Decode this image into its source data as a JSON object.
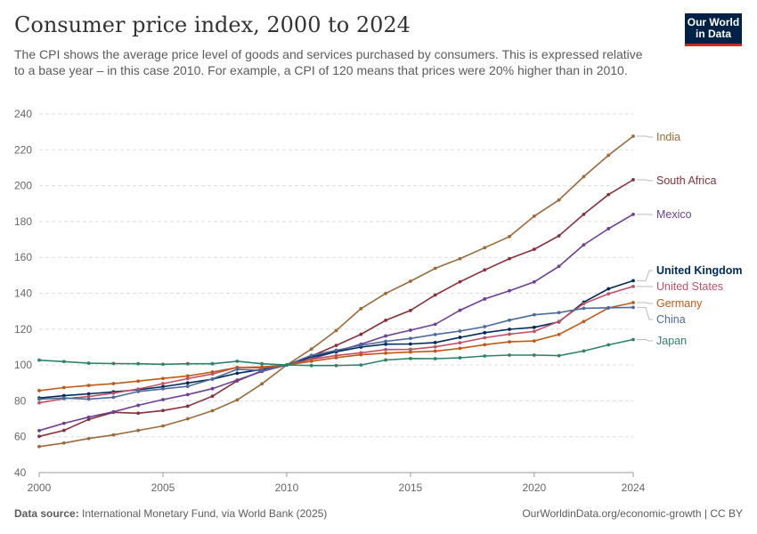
{
  "header": {
    "title": "Consumer price index, 2000 to 2024",
    "subtitle": "The CPI shows the average price level of goods and services purchased by consumers. This is expressed relative to a base year – in this case 2010. For example, a CPI of 120 means that prices were 20% higher than in 2010.",
    "logo_line1": "Our World",
    "logo_line2": "in Data"
  },
  "footer": {
    "source_label": "Data source:",
    "source_text": "International Monetary Fund, via World Bank (2025)",
    "right_text": "OurWorldinData.org/economic-growth | CC BY"
  },
  "chart_data": {
    "type": "line",
    "title": "Consumer price index, 2000 to 2024",
    "xlabel": "",
    "ylabel": "",
    "xlim": [
      2000,
      2024
    ],
    "ylim": [
      40,
      240
    ],
    "xticks": [
      "2000",
      "2005",
      "2010",
      "2015",
      "2020",
      "2024"
    ],
    "yticks": [
      "40",
      "60",
      "80",
      "100",
      "120",
      "140",
      "160",
      "180",
      "200",
      "220",
      "240"
    ],
    "grid": "horizontal dashed",
    "legend": "right, inline labels at line ends",
    "x": [
      2000,
      2001,
      2002,
      2003,
      2004,
      2005,
      2006,
      2007,
      2008,
      2009,
      2010,
      2011,
      2012,
      2013,
      2014,
      2015,
      2016,
      2017,
      2018,
      2019,
      2020,
      2021,
      2022,
      2023,
      2024
    ],
    "series": [
      {
        "name": "India",
        "color": "#9a6a3a",
        "values": [
          54.5,
          56.5,
          59,
          61,
          63.5,
          66,
          70,
          74.5,
          80.5,
          89.5,
          100,
          108.9,
          119.2,
          131.4,
          139.9,
          146.7,
          153.9,
          159.3,
          165.4,
          171.6,
          183,
          192,
          205,
          216.9,
          227.6
        ]
      },
      {
        "name": "South Africa",
        "color": "#883039",
        "values": [
          60.2,
          63.5,
          69.7,
          73.6,
          73.1,
          74.6,
          77.0,
          82.6,
          91.1,
          96.7,
          100,
          105.0,
          110.9,
          117.1,
          124.9,
          130.4,
          139.0,
          146.4,
          153.0,
          159.3,
          164.5,
          172.0,
          184.0,
          195.0,
          203.3
        ]
      },
      {
        "name": "Mexico",
        "color": "#6d3e91",
        "values": [
          63.4,
          67.5,
          70.9,
          73.9,
          77.5,
          80.7,
          83.5,
          86.8,
          91.6,
          96.4,
          100,
          103.4,
          107.6,
          111.6,
          116.2,
          119.4,
          122.7,
          130.5,
          136.8,
          141.4,
          146.3,
          155.0,
          167.0,
          176.0,
          184.0
        ]
      },
      {
        "name": "United Kingdom",
        "color": "#00295b",
        "values": [
          81.6,
          82.9,
          83.9,
          85.0,
          86.2,
          87.9,
          90.0,
          92.1,
          95.4,
          97.5,
          100,
          104.5,
          107.4,
          110.0,
          111.6,
          111.7,
          112.5,
          115.4,
          118.0,
          119.9,
          121.0,
          124.0,
          135.0,
          142.5,
          147.0
        ]
      },
      {
        "name": "United States",
        "color": "#c15065",
        "values": [
          78.9,
          81.2,
          82.4,
          84.3,
          86.6,
          89.6,
          92.4,
          95.0,
          98.7,
          98.3,
          100,
          103.2,
          105.3,
          106.8,
          108.6,
          108.7,
          110.1,
          112.4,
          115.2,
          117.2,
          118.7,
          124.3,
          134.2,
          139.7,
          143.8
        ]
      },
      {
        "name": "Germany",
        "color": "#c05917",
        "values": [
          85.7,
          87.4,
          88.6,
          89.6,
          91.0,
          92.5,
          93.9,
          96.1,
          98.6,
          98.9,
          100,
          102.1,
          104.1,
          105.7,
          106.6,
          107.2,
          107.7,
          109.3,
          111.3,
          112.9,
          113.4,
          117.0,
          124.2,
          131.8,
          134.8
        ]
      },
      {
        "name": "China",
        "color": "#4c6a9c",
        "values": [
          81.0,
          81.6,
          81.0,
          82.0,
          85.2,
          86.7,
          88.1,
          92.2,
          97.6,
          96.9,
          100,
          105.4,
          108.2,
          111.0,
          113.2,
          114.8,
          117.0,
          118.9,
          121.4,
          125.0,
          128.0,
          129.2,
          131.6,
          131.9,
          132.1
        ]
      },
      {
        "name": "Japan",
        "color": "#2c8465",
        "values": [
          102.7,
          101.9,
          101.0,
          100.8,
          100.7,
          100.4,
          100.7,
          100.7,
          102.1,
          100.7,
          100,
          99.7,
          99.7,
          100.0,
          102.8,
          103.6,
          103.5,
          104.0,
          105.0,
          105.5,
          105.5,
          105.2,
          107.8,
          111.2,
          114.2
        ]
      }
    ]
  }
}
